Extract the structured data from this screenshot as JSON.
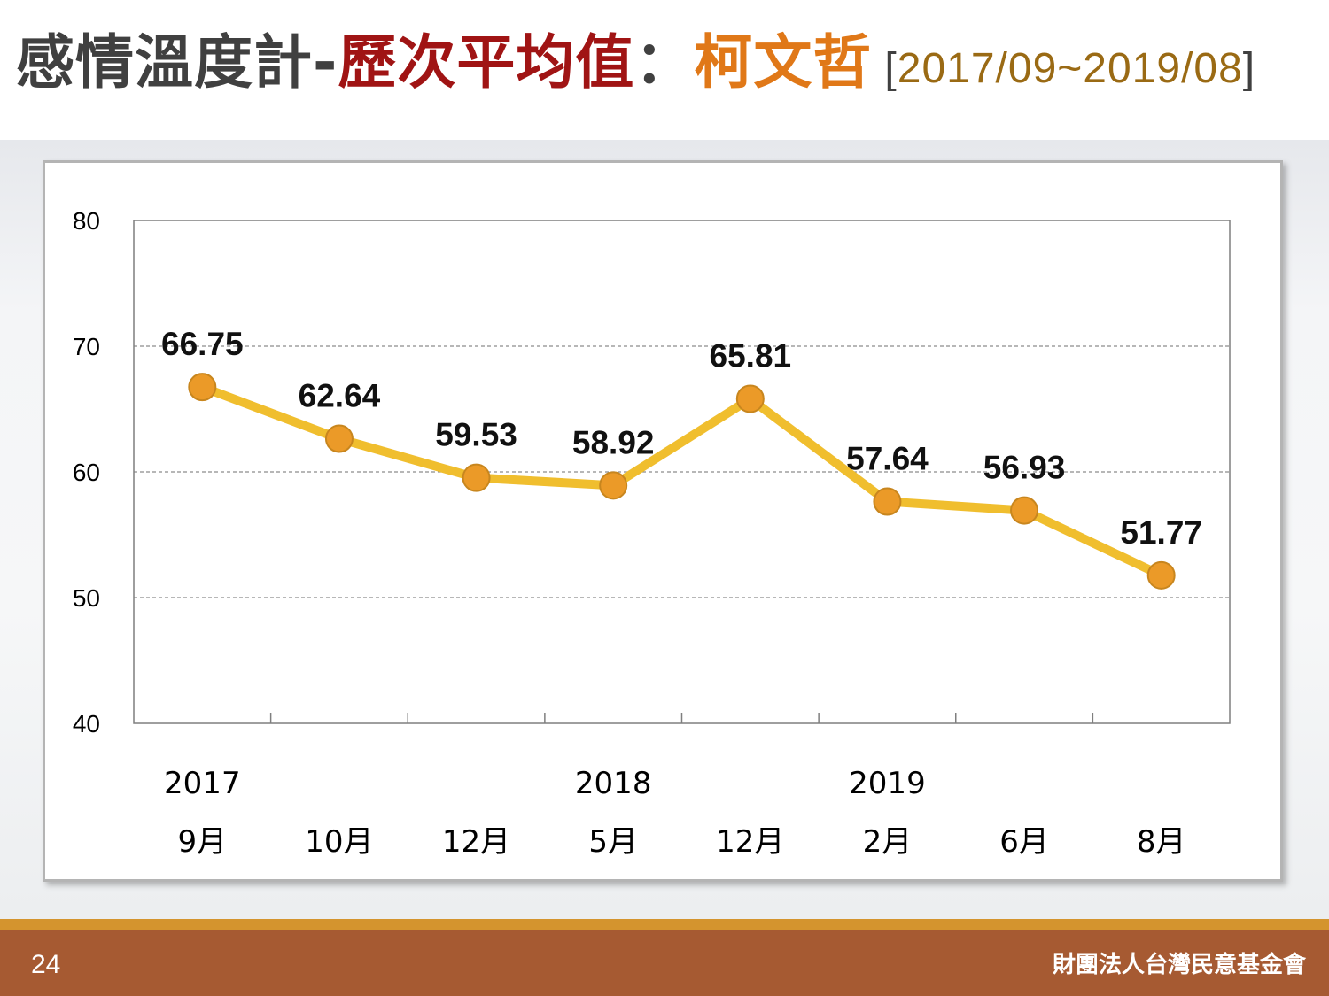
{
  "title": {
    "main": "感情溫度計",
    "separator": "-",
    "emphasis": "歷次平均值",
    "colon": "：",
    "name": "柯文哲",
    "range_open": "[",
    "range": "2017/09~2019/08",
    "range_close": "]"
  },
  "footer": {
    "page_number": "24",
    "organization": "財團法人台灣民意基金會"
  },
  "colors": {
    "line": "#f0be2e",
    "marker_fill": "#eb9a28",
    "marker_stroke": "#c8861e",
    "title_emphasis": "#a01414",
    "title_name": "#e07818",
    "footer": "#a65a32"
  },
  "chart_data": {
    "type": "line",
    "title": "",
    "xlabel": "",
    "ylabel": "",
    "ylim": [
      40,
      80
    ],
    "yticks": [
      80,
      70,
      60,
      50,
      40
    ],
    "grid": "horizontal dashed",
    "legend": "none",
    "categories": [
      "9月",
      "10月",
      "12月",
      "5月",
      "12月",
      "2月",
      "6月",
      "8月"
    ],
    "year_labels": [
      "2017",
      "",
      "",
      "2018",
      "",
      "2019",
      "",
      ""
    ],
    "series": [
      {
        "values": [
          66.75,
          62.64,
          59.53,
          58.92,
          65.81,
          57.64,
          56.93,
          51.77
        ],
        "labels": [
          "66.75",
          "62.64",
          "59.53",
          "58.92",
          "65.81",
          "57.64",
          "56.93",
          "51.77"
        ]
      }
    ]
  }
}
